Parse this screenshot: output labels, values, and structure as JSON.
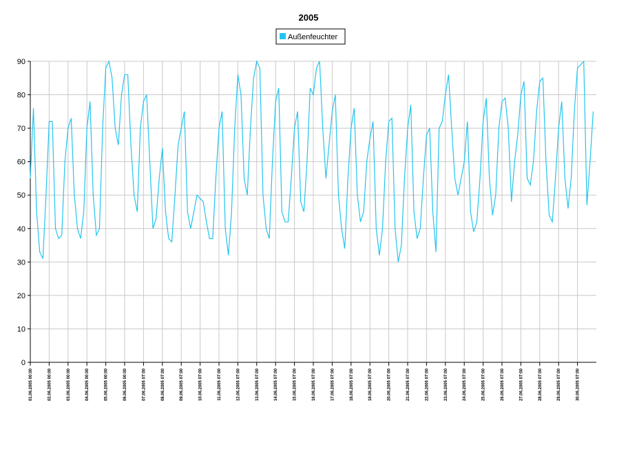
{
  "chart_data": {
    "type": "line",
    "title": "2005",
    "categories": [
      "01.06.2005 00:00",
      null,
      null,
      null,
      null,
      null,
      "02.06.2005 00:00",
      null,
      null,
      null,
      null,
      null,
      "03.06.2005 00:00",
      null,
      null,
      null,
      null,
      null,
      "04.06.2005 00:00",
      null,
      null,
      null,
      null,
      null,
      "05.06.2005 00:00",
      null,
      null,
      null,
      null,
      null,
      "06.06.2005 00:00",
      null,
      null,
      null,
      null,
      null,
      "07.06.2005 07:00",
      null,
      null,
      null,
      null,
      null,
      "08.06.2005 07:00",
      null,
      null,
      null,
      null,
      null,
      "09.06.2005 07:00",
      null,
      null,
      null,
      null,
      null,
      "10.06.2005 07:00",
      null,
      null,
      null,
      null,
      null,
      "11.06.2005 07:00",
      null,
      null,
      null,
      null,
      null,
      "12.06.2005 07:00",
      null,
      null,
      null,
      null,
      null,
      "13.06.2005 07:00",
      null,
      null,
      null,
      null,
      null,
      "14.06.2005 07:00",
      null,
      null,
      null,
      null,
      null,
      "15.06.2005 07:00",
      null,
      null,
      null,
      null,
      null,
      "16.06.2005 07:00",
      null,
      null,
      null,
      null,
      null,
      "17.06.2005 07:00",
      null,
      null,
      null,
      null,
      null,
      "18.06.2005 07:00",
      null,
      null,
      null,
      null,
      null,
      "19.06.2005 07:00",
      null,
      null,
      null,
      null,
      null,
      "20.06.2005 07:00",
      null,
      null,
      null,
      null,
      null,
      "21.06.2005 07:00",
      null,
      null,
      null,
      null,
      null,
      "22.06.2005 07:00",
      null,
      null,
      null,
      null,
      null,
      "23.06.2005 07:00",
      null,
      null,
      null,
      null,
      null,
      "24.06.2005 07:00",
      null,
      null,
      null,
      null,
      null,
      "25.06.2005 07:00",
      null,
      null,
      null,
      null,
      null,
      "26.06.2005 07:00",
      null,
      null,
      null,
      null,
      null,
      "27.06.2005 07:00",
      null,
      null,
      null,
      null,
      null,
      "28.06.2005 07:00",
      null,
      null,
      null,
      null,
      null,
      "29.06.2005 07:00",
      null,
      null,
      null,
      null,
      null,
      "30.06.2005 07:00",
      null,
      null,
      null,
      null,
      null
    ],
    "series": [
      {
        "name": "Außenfeuchter",
        "color": "#22c4ee",
        "values": [
          55,
          76,
          45,
          33,
          31,
          50,
          72,
          72,
          40,
          37,
          38,
          60,
          70,
          73,
          50,
          40,
          37,
          45,
          70,
          78,
          50,
          38,
          40,
          70,
          88,
          90,
          85,
          70,
          65,
          80,
          86,
          86,
          65,
          50,
          45,
          70,
          78,
          80,
          60,
          40,
          43,
          55,
          64,
          45,
          37,
          36,
          50,
          65,
          70,
          75,
          45,
          40,
          45,
          50,
          49,
          48,
          42,
          37,
          37,
          55,
          70,
          75,
          40,
          32,
          45,
          70,
          86,
          80,
          55,
          50,
          70,
          85,
          90,
          88,
          50,
          40,
          37,
          60,
          78,
          82,
          45,
          42,
          42,
          55,
          70,
          75,
          48,
          45,
          60,
          82,
          80,
          88,
          90,
          70,
          55,
          65,
          75,
          80,
          50,
          40,
          34,
          55,
          70,
          76,
          50,
          42,
          45,
          60,
          67,
          72,
          40,
          32,
          40,
          60,
          72,
          73,
          40,
          30,
          35,
          55,
          70,
          77,
          45,
          37,
          40,
          55,
          68,
          70,
          45,
          33,
          70,
          72,
          80,
          86,
          70,
          55,
          50,
          55,
          60,
          72,
          45,
          39,
          42,
          55,
          72,
          79,
          55,
          44,
          50,
          70,
          78,
          79,
          70,
          48,
          60,
          68,
          80,
          84,
          55,
          53,
          60,
          75,
          84,
          85,
          60,
          44,
          42,
          55,
          70,
          78,
          55,
          46,
          55,
          75,
          88,
          89,
          90,
          47,
          60,
          75
        ]
      }
    ],
    "ylim": [
      0,
      90
    ],
    "yticks": [
      0,
      10,
      20,
      30,
      40,
      50,
      60,
      70,
      80,
      90
    ],
    "grid": true
  }
}
